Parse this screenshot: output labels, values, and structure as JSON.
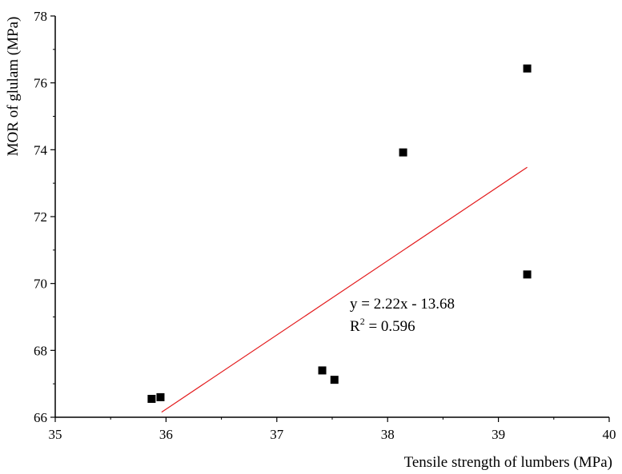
{
  "chart_data": {
    "type": "scatter",
    "title": "",
    "xlabel": "Tensile strength of lumbers (MPa)",
    "ylabel": "MOR of glulam (MPa)",
    "xlim": [
      35,
      40
    ],
    "ylim": [
      66,
      78
    ],
    "xticks": [
      "35",
      "36",
      "37",
      "38",
      "39",
      "40"
    ],
    "yticks": [
      "66",
      "68",
      "70",
      "72",
      "74",
      "76",
      "78"
    ],
    "grid": false,
    "points": [
      {
        "x": 35.87,
        "y": 66.55
      },
      {
        "x": 35.95,
        "y": 66.6
      },
      {
        "x": 37.41,
        "y": 67.4
      },
      {
        "x": 37.52,
        "y": 67.12
      },
      {
        "x": 38.14,
        "y": 73.92
      },
      {
        "x": 39.26,
        "y": 76.43
      },
      {
        "x": 39.26,
        "y": 70.27
      }
    ],
    "fit_line": {
      "slope": 2.22,
      "intercept": -13.68,
      "x_start": 35.96,
      "x_end": 39.26,
      "color": "#e31a1c"
    },
    "annotation": {
      "equation": "y  = 2.22x - 13.68",
      "r2_prefix": "R",
      "r2_sup": "2",
      "r2_rest": " = 0.596"
    },
    "marker_color": "#000000"
  }
}
